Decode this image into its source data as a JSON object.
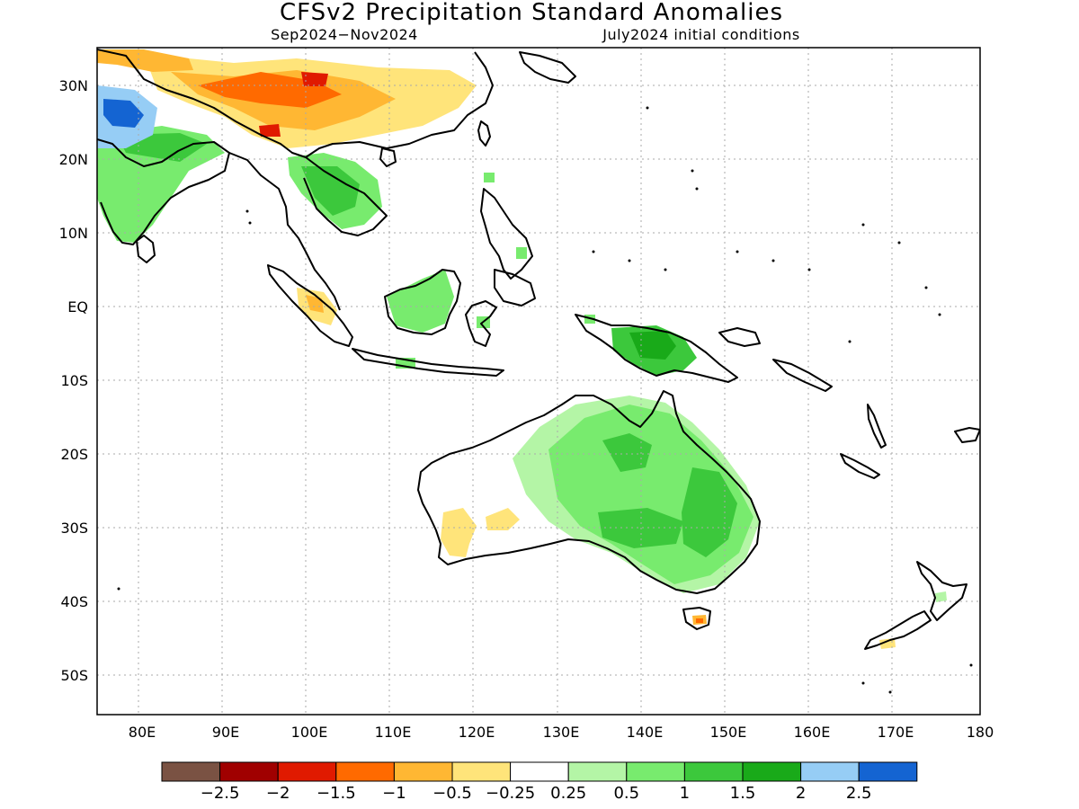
{
  "title": "CFSv2 Precipitation Standard Anomalies",
  "subtitle_left": "Sep2024−Nov2024",
  "subtitle_right": "July2024 initial conditions",
  "lon_labels": [
    "80E",
    "90E",
    "100E",
    "110E",
    "120E",
    "130E",
    "140E",
    "150E",
    "160E",
    "170E",
    "180"
  ],
  "lat_labels": [
    "30N",
    "20N",
    "10N",
    "EQ",
    "10S",
    "20S",
    "30S",
    "40S",
    "50S"
  ],
  "colorbar": {
    "labels": [
      "−2.5",
      "−2",
      "−1.5",
      "−1",
      "−0.5",
      "−0.25",
      "0.25",
      "0.5",
      "1",
      "1.5",
      "2",
      "2.5"
    ],
    "colors": [
      "#7a5243",
      "#a00000",
      "#e01a00",
      "#ff6a00",
      "#ffb733",
      "#ffe47a",
      "#ffffff",
      "#b4f5a6",
      "#78eb6e",
      "#3cc83c",
      "#19aa19",
      "#96cdf5",
      "#1464d2"
    ]
  },
  "colors": {
    "wet_light": "#b4f5a6",
    "wet": "#78eb6e",
    "wet_mid": "#3cc83c",
    "wet_strong": "#19aa19",
    "blue_light": "#96cdf5",
    "blue": "#1464d2",
    "dry_light": "#ffe47a",
    "dry": "#ffb733",
    "dry_mid": "#ff6a00",
    "dry_strong": "#e01a00"
  }
}
